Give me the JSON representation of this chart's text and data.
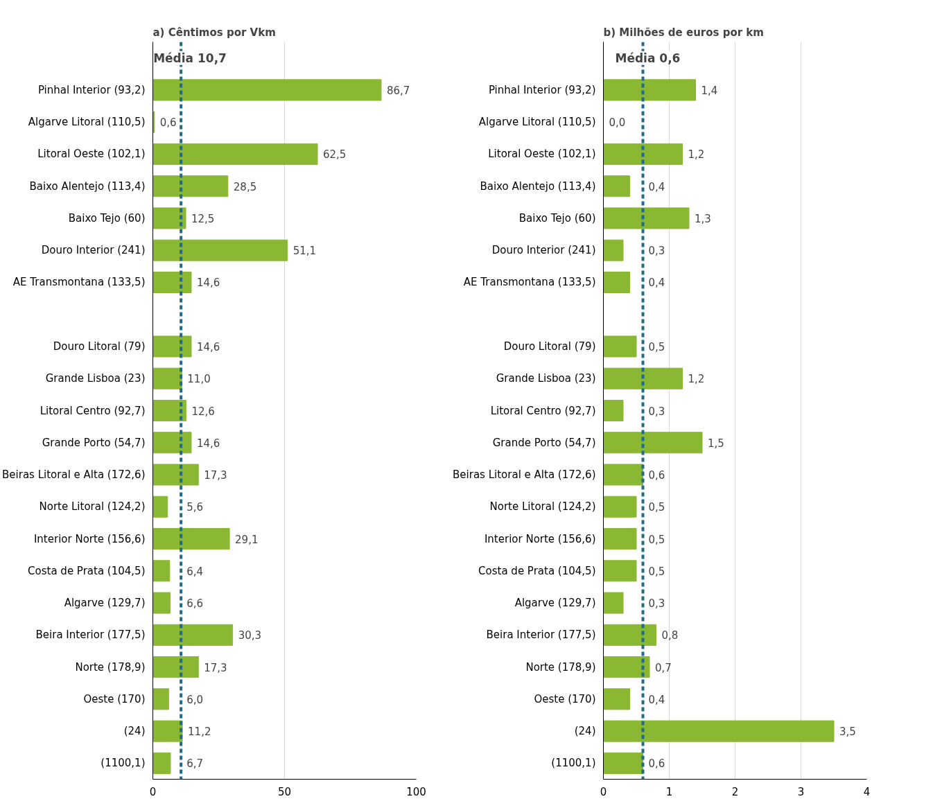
{
  "chart_data": [
    {
      "type": "bar",
      "orientation": "horizontal",
      "title": "a)     Cêntimos por Vkm",
      "categories": [
        "Pinhal Interior (93,2)",
        "Algarve Litoral (110,5)",
        "Litoral Oeste (102,1)",
        "Baixo Alentejo (113,4)",
        "Baixo Tejo (60)",
        "Douro Interior (241)",
        "AE Transmontana (133,5)",
        null,
        "Douro Litoral (79)",
        "Grande Lisboa (23)",
        "Litoral Centro (92,7)",
        "Grande Porto (54,7)",
        "Beiras Litoral e Alta (172,6)",
        "Norte Litoral (124,2)",
        "Interior Norte (156,6)",
        "Costa de Prata (104,5)",
        "Algarve (129,7)",
        "Beira Interior (177,5)",
        "Norte (178,9)",
        "Oeste (170)",
        "(24)",
        "(1100,1)"
      ],
      "values": [
        86.7,
        0.6,
        62.5,
        28.5,
        12.5,
        51.1,
        14.6,
        null,
        14.6,
        11.0,
        12.6,
        14.6,
        17.3,
        5.6,
        29.1,
        6.4,
        6.6,
        30.3,
        17.3,
        6.0,
        11.2,
        6.7
      ],
      "value_labels": [
        "86,7",
        "0,6",
        "62,5",
        "28,5",
        "12,5",
        "51,1",
        "14,6",
        null,
        "14,6",
        "11,0",
        "12,6",
        "14,6",
        "17,3",
        "5,6",
        "29,1",
        "6,4",
        "6,6",
        "30,3",
        "17,3",
        "6,0",
        "11,2",
        "6,7"
      ],
      "color": "#8ab833",
      "xlim": [
        0,
        100
      ],
      "xticks": [
        0,
        50,
        100
      ],
      "grid": "x",
      "ref_lines": [
        {
          "axis": "x",
          "value": 10.7,
          "label": "Média 10,7",
          "color": "#1f6b8a",
          "line_style": "dashed"
        }
      ]
    },
    {
      "type": "bar",
      "orientation": "horizontal",
      "title": "b)  Milhões de euros por km",
      "categories": [
        "Pinhal Interior (93,2)",
        "Algarve Litoral (110,5)",
        "Litoral Oeste (102,1)",
        "Baixo Alentejo (113,4)",
        "Baixo Tejo (60)",
        "Douro Interior (241)",
        "AE Transmontana (133,5)",
        null,
        "Douro Litoral (79)",
        "Grande Lisboa (23)",
        "Litoral Centro (92,7)",
        "Grande Porto (54,7)",
        "Beiras Litoral e Alta (172,6)",
        "Norte Litoral (124,2)",
        "Interior Norte (156,6)",
        "Costa de Prata (104,5)",
        "Algarve (129,7)",
        "Beira Interior (177,5)",
        "Norte (178,9)",
        "Oeste (170)",
        "(24)",
        "(1100,1)"
      ],
      "values": [
        1.4,
        0.0,
        1.2,
        0.4,
        1.3,
        0.3,
        0.4,
        null,
        0.5,
        1.2,
        0.3,
        1.5,
        0.6,
        0.5,
        0.5,
        0.5,
        0.3,
        0.8,
        0.7,
        0.4,
        3.5,
        0.6
      ],
      "value_labels": [
        "1,4",
        "0,0",
        "1,2",
        "0,4",
        "1,3",
        "0,3",
        "0,4",
        null,
        "0,5",
        "1,2",
        "0,3",
        "1,5",
        "0,6",
        "0,5",
        "0,5",
        "0,5",
        "0,3",
        "0,8",
        "0,7",
        "0,4",
        "3,5",
        "0,6"
      ],
      "color": "#8ab833",
      "xlim": [
        0,
        4
      ],
      "xticks": [
        0,
        1,
        2,
        3,
        4
      ],
      "grid": "x",
      "ref_lines": [
        {
          "axis": "x",
          "value": 0.6,
          "label": "Média 0,6",
          "color": "#1f6b8a",
          "line_style": "dashed"
        }
      ]
    }
  ]
}
